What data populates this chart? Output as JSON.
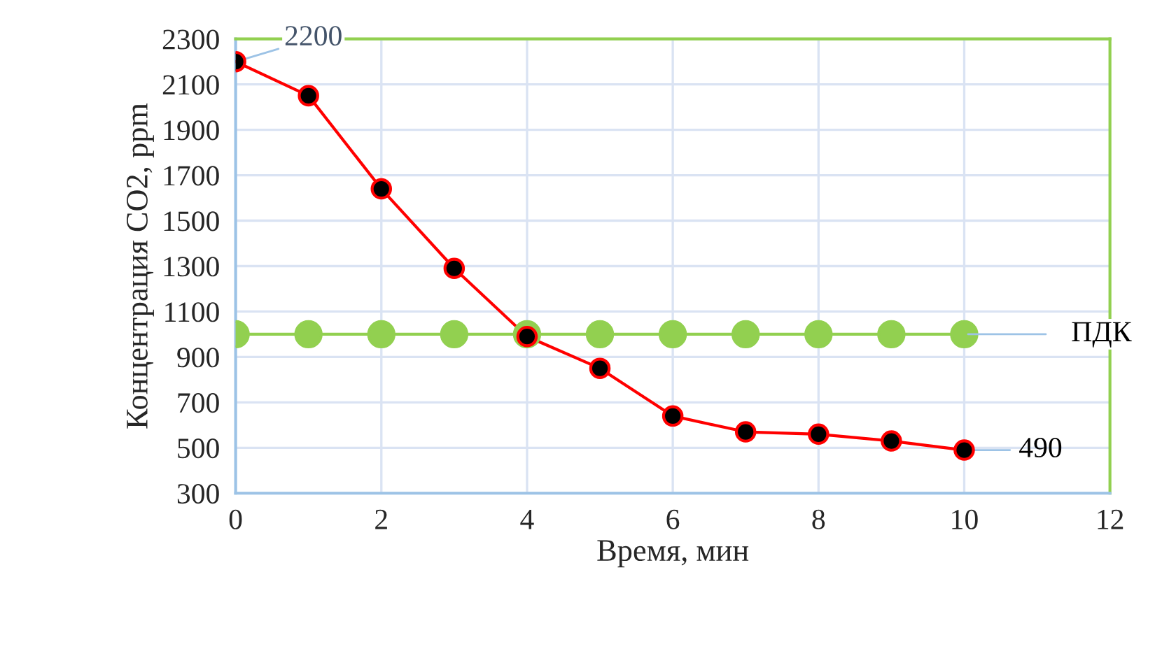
{
  "chart_data": {
    "type": "line",
    "xlabel": "Время, мин",
    "ylabel": "Концентрация CO2, ppm",
    "x": [
      0,
      1,
      2,
      3,
      4,
      5,
      6,
      7,
      8,
      9,
      10
    ],
    "series": [
      {
        "name": null,
        "color": "#ff0000",
        "marker": "circle",
        "values": [
          2200,
          2050,
          1640,
          1290,
          990,
          850,
          640,
          570,
          560,
          530,
          490
        ],
        "value_labels": [
          "2200",
          null,
          null,
          null,
          null,
          null,
          null,
          null,
          null,
          null,
          "490"
        ]
      },
      {
        "name": "ПДК",
        "color": "#92d050",
        "marker": "circle",
        "values": [
          1000,
          1000,
          1000,
          1000,
          1000,
          1000,
          1000,
          1000,
          1000,
          1000,
          1000
        ]
      }
    ],
    "xlim": [
      0,
      12
    ],
    "xticks": [
      0,
      2,
      4,
      6,
      8,
      10,
      12
    ],
    "ylim": [
      300,
      2300
    ],
    "yticks": [
      300,
      500,
      700,
      900,
      1100,
      1300,
      1500,
      1700,
      1900,
      2100,
      2300
    ],
    "grid": true,
    "line_style": "solid"
  }
}
